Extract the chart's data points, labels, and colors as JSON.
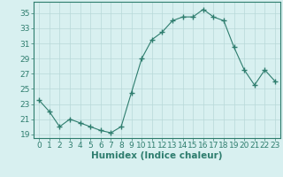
{
  "x": [
    0,
    1,
    2,
    3,
    4,
    5,
    6,
    7,
    8,
    9,
    10,
    11,
    12,
    13,
    14,
    15,
    16,
    17,
    18,
    19,
    20,
    21,
    22,
    23
  ],
  "y": [
    23.5,
    22.0,
    20.0,
    21.0,
    20.5,
    20.0,
    19.5,
    19.2,
    20.0,
    24.5,
    29.0,
    31.5,
    32.5,
    34.0,
    34.5,
    34.5,
    35.5,
    34.5,
    34.0,
    30.5,
    27.5,
    25.5,
    27.5,
    26.0
  ],
  "line_color": "#2e7d6e",
  "marker": "+",
  "marker_size": 4,
  "bg_color": "#d8f0f0",
  "grid_color": "#b8d8d8",
  "xlabel": "Humidex (Indice chaleur)",
  "xlim": [
    -0.5,
    23.5
  ],
  "ylim": [
    18.5,
    36.5
  ],
  "yticks": [
    19,
    21,
    23,
    25,
    27,
    29,
    31,
    33,
    35
  ],
  "xticks": [
    0,
    1,
    2,
    3,
    4,
    5,
    6,
    7,
    8,
    9,
    10,
    11,
    12,
    13,
    14,
    15,
    16,
    17,
    18,
    19,
    20,
    21,
    22,
    23
  ],
  "font_size": 6.5,
  "xlabel_font_size": 7.5
}
